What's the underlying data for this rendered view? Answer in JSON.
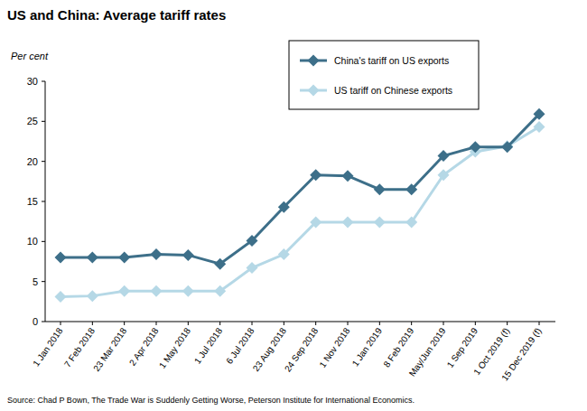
{
  "chart_data": {
    "type": "line",
    "title": "US and China: Average tariff rates",
    "y_label": "Per cent",
    "source": "Source: Chad P Bown, The Trade War is Suddenly Getting Worse, Peterson Institute  for International Economics.",
    "categories": [
      "1 Jan 2018",
      "7 Feb 2018",
      "23 Mar 2018",
      "2 Apr 2018",
      "1 May 2018",
      "1 Jul 2018",
      "6 Jul 2018",
      "23 Aug 2018",
      "24 Sep 2018",
      "1 Nov 2018",
      "1 Jan 2019",
      "8 Feb 2019",
      "May/Jun 2019",
      "1 Sep 2019",
      "1 Oct 2019 (f)",
      "15 Dec 2019 (f)"
    ],
    "series": [
      {
        "name": "China's tariff on US exports",
        "color": "#3d6f89",
        "marker": "diamond",
        "values": [
          8.0,
          8.0,
          8.0,
          8.4,
          8.3,
          7.2,
          10.1,
          14.3,
          18.3,
          18.2,
          16.5,
          16.5,
          20.7,
          21.8,
          21.8,
          25.9
        ]
      },
      {
        "name": "US tariff on Chinese exports",
        "color": "#b5d8e6",
        "marker": "diamond",
        "values": [
          3.1,
          3.2,
          3.8,
          3.8,
          3.8,
          3.8,
          6.7,
          8.4,
          12.4,
          12.4,
          12.4,
          12.4,
          18.3,
          21.2,
          21.9,
          24.3
        ]
      }
    ],
    "ylim": [
      0,
      30
    ],
    "yticks": [
      0,
      5,
      10,
      15,
      20,
      25,
      30
    ],
    "grid": false,
    "legend": "top-right"
  }
}
